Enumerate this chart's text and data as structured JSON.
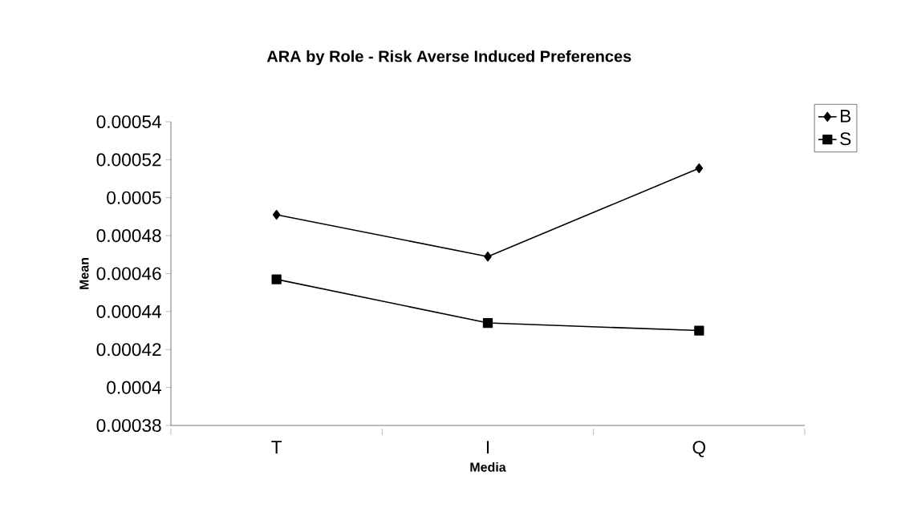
{
  "chart_data": {
    "type": "line",
    "title": "ARA by Role - Risk Averse Induced Preferences",
    "xlabel": "Media",
    "ylabel": "Mean",
    "categories": [
      "T",
      "I",
      "Q"
    ],
    "series": [
      {
        "name": "B",
        "color": "#000000",
        "marker": "diamond",
        "values": [
          0.000491,
          0.000469,
          0.0005155
        ]
      },
      {
        "name": "S",
        "color": "#000000",
        "marker": "square",
        "values": [
          0.000457,
          0.000434,
          0.00043
        ]
      }
    ],
    "ylim": [
      0.00038,
      0.00054
    ],
    "yticks": [
      0.00038,
      0.0004,
      0.00042,
      0.00044,
      0.00046,
      0.00048,
      0.0005,
      0.00052,
      0.00054
    ],
    "grid": false,
    "legend": "top right",
    "line_style": "solid"
  }
}
